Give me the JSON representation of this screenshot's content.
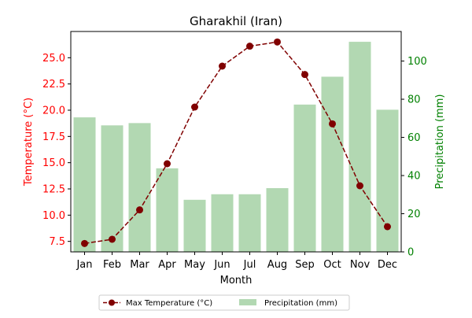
{
  "chart_data": {
    "type": "bar+line",
    "title": "Gharakhil (Iran)",
    "xlabel": "Month",
    "ylabel_left": "Temperature (°C)",
    "ylabel_right": "Precipitation (mm)",
    "categories": [
      "Jan",
      "Feb",
      "Mar",
      "Apr",
      "May",
      "Jun",
      "Jul",
      "Aug",
      "Sep",
      "Oct",
      "Nov",
      "Dec"
    ],
    "left_axis": {
      "range": [
        6.5,
        27.5
      ],
      "ticks": [
        "7.5",
        "10.0",
        "12.5",
        "15.0",
        "17.5",
        "20.0",
        "22.5",
        "25.0"
      ],
      "color": "#ff0000"
    },
    "right_axis": {
      "range": [
        0,
        115.5
      ],
      "ticks": [
        "0",
        "20",
        "40",
        "60",
        "80",
        "100"
      ],
      "color": "#008000"
    },
    "series": [
      {
        "name": "Max Temperature (°C)",
        "type": "line",
        "axis": "left",
        "color": "#800000",
        "values": [
          7.3,
          7.7,
          10.5,
          14.9,
          20.3,
          24.2,
          26.1,
          26.5,
          23.4,
          18.7,
          12.8,
          8.9
        ]
      },
      {
        "name": "Precipitation (mm)",
        "type": "bar",
        "axis": "right",
        "color": "#b2d8b2",
        "values": [
          70.5,
          66.3,
          67.5,
          43.8,
          27.3,
          30.2,
          30.2,
          33.4,
          77.2,
          91.8,
          110.1,
          74.5
        ]
      }
    ],
    "grid": false,
    "legend": "bottom-center"
  }
}
